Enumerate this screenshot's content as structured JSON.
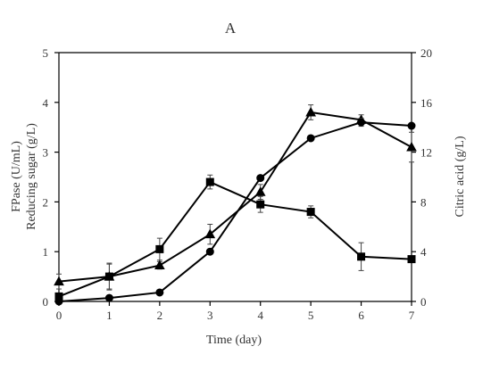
{
  "chart_data": {
    "type": "line",
    "title": "A",
    "xlabel": "Time (day)",
    "ylabel_left": [
      "FPase (U/mL)",
      "Reducing sugar (g/L)"
    ],
    "ylabel_right": "Citric acid (g/L)",
    "x": [
      0,
      1,
      2,
      3,
      4,
      5,
      6,
      7
    ],
    "xlim": [
      0,
      7
    ],
    "ylim_left": [
      0,
      5
    ],
    "ylim_right": [
      0,
      20
    ],
    "xticks": [
      "0",
      "1",
      "2",
      "3",
      "4",
      "5",
      "6",
      "7"
    ],
    "yticks_left": [
      "0",
      "1",
      "2",
      "3",
      "4",
      "5"
    ],
    "yticks_right": [
      "0",
      "4",
      "8",
      "12",
      "16",
      "20"
    ],
    "grid": false,
    "legend": "none",
    "series": [
      {
        "marker": "square",
        "axis": "left",
        "values": [
          0.1,
          0.5,
          1.05,
          2.4,
          1.95,
          1.8,
          0.9,
          0.85
        ],
        "errors": [
          0.05,
          0.27,
          0.22,
          0.14,
          0.16,
          0.12,
          0.28,
          0.05
        ]
      },
      {
        "marker": "triangle",
        "axis": "right",
        "values": [
          1.6,
          2.0,
          2.9,
          5.4,
          8.8,
          15.2,
          14.6,
          12.4
        ],
        "errors": [
          0.6,
          1.0,
          0.3,
          0.8,
          0.6,
          0.6,
          0.4,
          1.2
        ]
      },
      {
        "marker": "circle",
        "axis": "left",
        "values": [
          0.0,
          0.07,
          0.18,
          1.0,
          2.48,
          3.28,
          3.6,
          3.53
        ],
        "errors": [
          0.02,
          0.03,
          0.03,
          0.05,
          0.05,
          0.05,
          0.08,
          0.05
        ]
      }
    ]
  }
}
